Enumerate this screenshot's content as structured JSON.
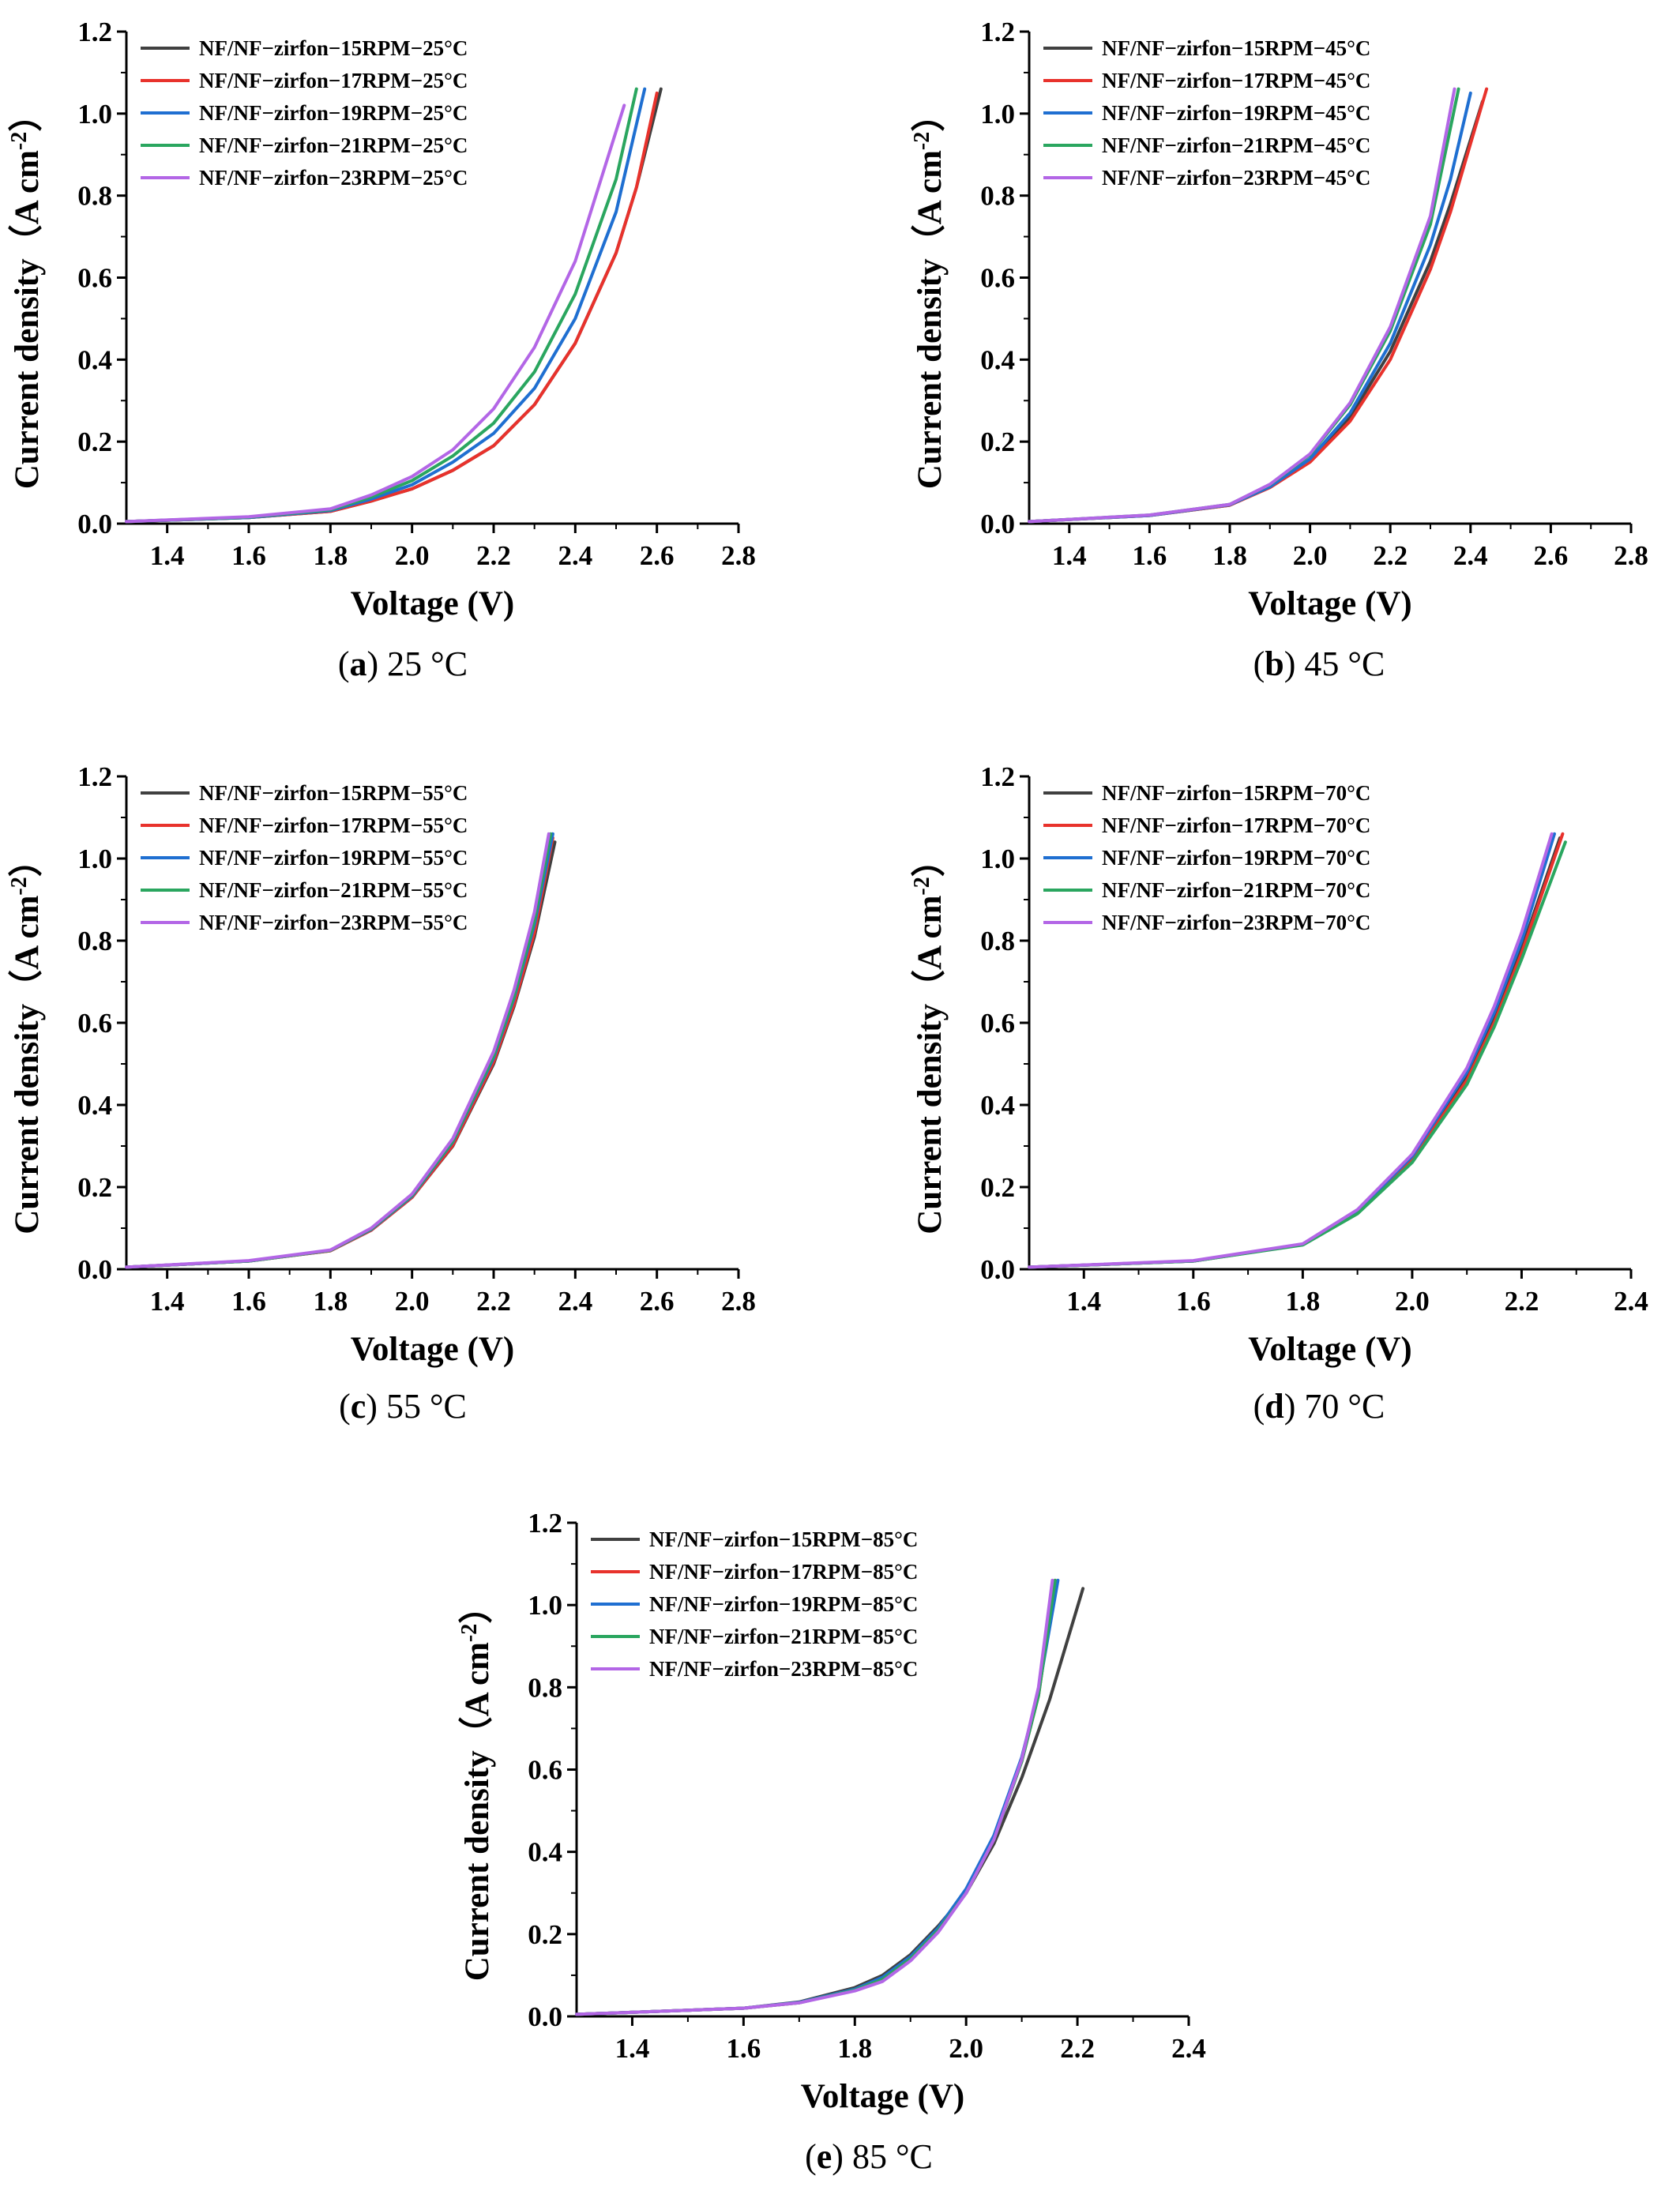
{
  "colors": {
    "15": "#404040",
    "17": "#e8322c",
    "19": "#1f6fd1",
    "21": "#2aa65f",
    "23": "#b366e6",
    "axis": "#000000"
  },
  "chart_data": [
    {
      "type": "line",
      "caption_letter": "a",
      "caption_text": " 25 °C",
      "xlabel": "Voltage (V)",
      "ylabel": "Current density（A cm",
      "ylabel_sup": "-2",
      "ylabel_close": "）",
      "xlim": [
        1.3,
        2.8
      ],
      "ylim": [
        0.0,
        1.2
      ],
      "xticks": [
        "1.4",
        "1.6",
        "1.8",
        "2.0",
        "2.2",
        "2.4",
        "2.6",
        "2.8"
      ],
      "yticks": [
        "0.0",
        "0.2",
        "0.4",
        "0.6",
        "0.8",
        "1.0",
        "1.2"
      ],
      "legend_position": "top-left",
      "series": [
        {
          "name": "NF/NF−zirfon−15RPM−25°C",
          "rpm": "15",
          "x": [
            1.3,
            1.6,
            1.8,
            1.9,
            2.0,
            2.1,
            2.2,
            2.3,
            2.4,
            2.5,
            2.55,
            2.61
          ],
          "y": [
            0.005,
            0.015,
            0.03,
            0.055,
            0.085,
            0.13,
            0.19,
            0.29,
            0.44,
            0.66,
            0.82,
            1.06
          ]
        },
        {
          "name": "NF/NF−zirfon−17RPM−25°C",
          "rpm": "17",
          "x": [
            1.3,
            1.6,
            1.8,
            1.9,
            2.0,
            2.1,
            2.2,
            2.3,
            2.4,
            2.5,
            2.55,
            2.6
          ],
          "y": [
            0.005,
            0.015,
            0.03,
            0.055,
            0.085,
            0.13,
            0.19,
            0.29,
            0.44,
            0.66,
            0.82,
            1.05
          ]
        },
        {
          "name": "NF/NF−zirfon−19RPM−25°C",
          "rpm": "19",
          "x": [
            1.3,
            1.6,
            1.8,
            1.9,
            2.0,
            2.1,
            2.2,
            2.3,
            2.4,
            2.5,
            2.57
          ],
          "y": [
            0.005,
            0.015,
            0.032,
            0.06,
            0.095,
            0.15,
            0.22,
            0.33,
            0.5,
            0.76,
            1.06
          ]
        },
        {
          "name": "NF/NF−zirfon−21RPM−25°C",
          "rpm": "21",
          "x": [
            1.3,
            1.6,
            1.8,
            1.9,
            2.0,
            2.1,
            2.2,
            2.3,
            2.4,
            2.5,
            2.55
          ],
          "y": [
            0.005,
            0.016,
            0.034,
            0.065,
            0.105,
            0.165,
            0.245,
            0.37,
            0.56,
            0.84,
            1.06
          ]
        },
        {
          "name": "NF/NF−zirfon−23RPM−25°C",
          "rpm": "23",
          "x": [
            1.3,
            1.6,
            1.8,
            1.9,
            2.0,
            2.1,
            2.2,
            2.3,
            2.4,
            2.52
          ],
          "y": [
            0.005,
            0.017,
            0.036,
            0.07,
            0.115,
            0.18,
            0.28,
            0.43,
            0.64,
            1.02
          ]
        }
      ]
    },
    {
      "type": "line",
      "caption_letter": "b",
      "caption_text": " 45 °C",
      "xlabel": "Voltage (V)",
      "ylabel": "Current density（A cm",
      "ylabel_sup": "-2",
      "ylabel_close": "）",
      "xlim": [
        1.3,
        2.8
      ],
      "ylim": [
        0.0,
        1.2
      ],
      "xticks": [
        "1.4",
        "1.6",
        "1.8",
        "2.0",
        "2.2",
        "2.4",
        "2.6",
        "2.8"
      ],
      "yticks": [
        "0.0",
        "0.2",
        "0.4",
        "0.6",
        "0.8",
        "1.0",
        "1.2"
      ],
      "legend_position": "top-left",
      "series": [
        {
          "name": "NF/NF−zirfon−15RPM−45°C",
          "rpm": "15",
          "x": [
            1.3,
            1.6,
            1.8,
            1.9,
            2.0,
            2.1,
            2.2,
            2.3,
            2.35,
            2.43
          ],
          "y": [
            0.005,
            0.02,
            0.045,
            0.09,
            0.155,
            0.26,
            0.42,
            0.64,
            0.78,
            1.03
          ]
        },
        {
          "name": "NF/NF−zirfon−17RPM−45°C",
          "rpm": "17",
          "x": [
            1.3,
            1.6,
            1.8,
            1.9,
            2.0,
            2.1,
            2.2,
            2.3,
            2.35,
            2.44
          ],
          "y": [
            0.005,
            0.02,
            0.045,
            0.088,
            0.15,
            0.25,
            0.4,
            0.62,
            0.76,
            1.06
          ]
        },
        {
          "name": "NF/NF−zirfon−19RPM−45°C",
          "rpm": "19",
          "x": [
            1.3,
            1.6,
            1.8,
            1.9,
            2.0,
            2.1,
            2.2,
            2.3,
            2.35,
            2.4
          ],
          "y": [
            0.005,
            0.02,
            0.046,
            0.09,
            0.158,
            0.27,
            0.44,
            0.68,
            0.84,
            1.05
          ]
        },
        {
          "name": "NF/NF−zirfon−21RPM−45°C",
          "rpm": "21",
          "x": [
            1.3,
            1.6,
            1.8,
            1.9,
            2.0,
            2.1,
            2.2,
            2.3,
            2.37
          ],
          "y": [
            0.005,
            0.021,
            0.047,
            0.095,
            0.168,
            0.29,
            0.47,
            0.73,
            1.06
          ]
        },
        {
          "name": "NF/NF−zirfon−23RPM−45°C",
          "rpm": "23",
          "x": [
            1.3,
            1.6,
            1.8,
            1.9,
            2.0,
            2.1,
            2.2,
            2.3,
            2.36
          ],
          "y": [
            0.005,
            0.021,
            0.047,
            0.096,
            0.17,
            0.295,
            0.48,
            0.75,
            1.06
          ]
        }
      ]
    },
    {
      "type": "line",
      "caption_letter": "c",
      "caption_text": " 55 °C",
      "xlabel": "Voltage (V)",
      "ylabel": "Current density（A cm",
      "ylabel_sup": "-2",
      "ylabel_close": "）",
      "xlim": [
        1.3,
        2.8
      ],
      "ylim": [
        0.0,
        1.2
      ],
      "xticks": [
        "1.4",
        "1.6",
        "1.8",
        "2.0",
        "2.2",
        "2.4",
        "2.6",
        "2.8"
      ],
      "yticks": [
        "0.0",
        "0.2",
        "0.4",
        "0.6",
        "0.8",
        "1.0",
        "1.2"
      ],
      "legend_position": "top-left",
      "series": [
        {
          "name": "NF/NF−zirfon−15RPM−55°C",
          "rpm": "15",
          "x": [
            1.3,
            1.6,
            1.8,
            1.9,
            2.0,
            2.1,
            2.2,
            2.25,
            2.3,
            2.35
          ],
          "y": [
            0.005,
            0.02,
            0.045,
            0.095,
            0.175,
            0.3,
            0.5,
            0.64,
            0.81,
            1.04
          ]
        },
        {
          "name": "NF/NF−zirfon−17RPM−55°C",
          "rpm": "17",
          "x": [
            1.3,
            1.6,
            1.8,
            1.9,
            2.0,
            2.1,
            2.2,
            2.25,
            2.3,
            2.345
          ],
          "y": [
            0.005,
            0.02,
            0.045,
            0.095,
            0.175,
            0.302,
            0.505,
            0.645,
            0.82,
            1.05
          ]
        },
        {
          "name": "NF/NF−zirfon−19RPM−55°C",
          "rpm": "19",
          "x": [
            1.3,
            1.6,
            1.8,
            1.9,
            2.0,
            2.1,
            2.2,
            2.25,
            2.3,
            2.345
          ],
          "y": [
            0.005,
            0.02,
            0.046,
            0.097,
            0.178,
            0.31,
            0.515,
            0.66,
            0.84,
            1.06
          ]
        },
        {
          "name": "NF/NF−zirfon−21RPM−55°C",
          "rpm": "21",
          "x": [
            1.3,
            1.6,
            1.8,
            1.9,
            2.0,
            2.1,
            2.2,
            2.25,
            2.3,
            2.34
          ],
          "y": [
            0.005,
            0.02,
            0.046,
            0.098,
            0.18,
            0.312,
            0.52,
            0.665,
            0.85,
            1.06
          ]
        },
        {
          "name": "NF/NF−zirfon−23RPM−55°C",
          "rpm": "23",
          "x": [
            1.3,
            1.6,
            1.8,
            1.9,
            2.0,
            2.1,
            2.2,
            2.25,
            2.3,
            2.335
          ],
          "y": [
            0.005,
            0.021,
            0.047,
            0.1,
            0.183,
            0.318,
            0.53,
            0.68,
            0.87,
            1.06
          ]
        }
      ]
    },
    {
      "type": "line",
      "caption_letter": "d",
      "caption_text": " 70 °C",
      "xlabel": "Voltage (V)",
      "ylabel": "Current density（A cm",
      "ylabel_sup": "-2",
      "ylabel_close": "）",
      "xlim": [
        1.3,
        2.4
      ],
      "ylim": [
        0.0,
        1.2
      ],
      "xticks": [
        "1.4",
        "1.6",
        "1.8",
        "2.0",
        "2.2",
        "2.4"
      ],
      "yticks": [
        "0.0",
        "0.2",
        "0.4",
        "0.6",
        "0.8",
        "1.0",
        "1.2"
      ],
      "legend_position": "top-left",
      "series": [
        {
          "name": "NF/NF−zirfon−15RPM−70°C",
          "rpm": "15",
          "x": [
            1.3,
            1.6,
            1.8,
            1.9,
            2.0,
            2.1,
            2.15,
            2.2,
            2.27
          ],
          "y": [
            0.005,
            0.02,
            0.06,
            0.14,
            0.27,
            0.47,
            0.61,
            0.78,
            1.05
          ]
        },
        {
          "name": "NF/NF−zirfon−17RPM−70°C",
          "rpm": "17",
          "x": [
            1.3,
            1.6,
            1.8,
            1.9,
            2.0,
            2.1,
            2.15,
            2.2,
            2.275
          ],
          "y": [
            0.005,
            0.02,
            0.06,
            0.138,
            0.265,
            0.46,
            0.6,
            0.77,
            1.06
          ]
        },
        {
          "name": "NF/NF−zirfon−19RPM−70°C",
          "rpm": "19",
          "x": [
            1.3,
            1.6,
            1.8,
            1.9,
            2.0,
            2.1,
            2.15,
            2.2,
            2.26
          ],
          "y": [
            0.005,
            0.02,
            0.061,
            0.142,
            0.275,
            0.48,
            0.625,
            0.8,
            1.06
          ]
        },
        {
          "name": "NF/NF−zirfon−21RPM−70°C",
          "rpm": "21",
          "x": [
            1.3,
            1.6,
            1.8,
            1.9,
            2.0,
            2.1,
            2.15,
            2.2,
            2.28
          ],
          "y": [
            0.005,
            0.02,
            0.059,
            0.135,
            0.26,
            0.45,
            0.59,
            0.755,
            1.04
          ]
        },
        {
          "name": "NF/NF−zirfon−23RPM−70°C",
          "rpm": "23",
          "x": [
            1.3,
            1.6,
            1.8,
            1.9,
            2.0,
            2.1,
            2.15,
            2.2,
            2.255
          ],
          "y": [
            0.005,
            0.021,
            0.062,
            0.145,
            0.28,
            0.49,
            0.64,
            0.82,
            1.06
          ]
        }
      ]
    },
    {
      "type": "line",
      "caption_letter": "e",
      "caption_text": " 85 °C",
      "xlabel": "Voltage (V)",
      "ylabel": "Current density（A cm",
      "ylabel_sup": "-2",
      "ylabel_close": "）",
      "xlim": [
        1.3,
        2.4
      ],
      "ylim": [
        0.0,
        1.2
      ],
      "xticks": [
        "1.4",
        "1.6",
        "1.8",
        "2.0",
        "2.2",
        "2.4"
      ],
      "yticks": [
        "0.0",
        "0.2",
        "0.4",
        "0.6",
        "0.8",
        "1.0",
        "1.2"
      ],
      "legend_position": "top-left",
      "series": [
        {
          "name": "NF/NF−zirfon−15RPM−85°C",
          "rpm": "15",
          "x": [
            1.3,
            1.6,
            1.7,
            1.8,
            1.85,
            1.9,
            1.95,
            2.0,
            2.05,
            2.1,
            2.15,
            2.21
          ],
          "y": [
            0.005,
            0.02,
            0.035,
            0.07,
            0.1,
            0.15,
            0.22,
            0.3,
            0.42,
            0.58,
            0.77,
            1.04
          ]
        },
        {
          "name": "NF/NF−zirfon−17RPM−85°C",
          "rpm": "17",
          "x": [
            1.3,
            1.6,
            1.7,
            1.8,
            1.85,
            1.9,
            1.95,
            2.0,
            2.05,
            2.1,
            2.13,
            2.16
          ],
          "y": [
            0.005,
            0.02,
            0.033,
            0.065,
            0.09,
            0.14,
            0.21,
            0.3,
            0.43,
            0.62,
            0.78,
            1.06
          ]
        },
        {
          "name": "NF/NF−zirfon−19RPM−85°C",
          "rpm": "19",
          "x": [
            1.3,
            1.6,
            1.7,
            1.8,
            1.85,
            1.9,
            1.95,
            2.0,
            2.05,
            2.1,
            2.13,
            2.165
          ],
          "y": [
            0.005,
            0.02,
            0.034,
            0.066,
            0.095,
            0.145,
            0.215,
            0.31,
            0.44,
            0.63,
            0.79,
            1.06
          ]
        },
        {
          "name": "NF/NF−zirfon−21RPM−85°C",
          "rpm": "21",
          "x": [
            1.3,
            1.6,
            1.7,
            1.8,
            1.85,
            1.9,
            1.95,
            2.0,
            2.05,
            2.1,
            2.13,
            2.16
          ],
          "y": [
            0.005,
            0.02,
            0.033,
            0.064,
            0.09,
            0.14,
            0.21,
            0.3,
            0.43,
            0.62,
            0.78,
            1.06
          ]
        },
        {
          "name": "NF/NF−zirfon−23RPM−85°C",
          "rpm": "23",
          "x": [
            1.3,
            1.6,
            1.7,
            1.8,
            1.85,
            1.9,
            1.95,
            2.0,
            2.05,
            2.1,
            2.13,
            2.155
          ],
          "y": [
            0.005,
            0.02,
            0.033,
            0.062,
            0.085,
            0.135,
            0.205,
            0.3,
            0.43,
            0.625,
            0.8,
            1.06
          ]
        }
      ]
    }
  ]
}
